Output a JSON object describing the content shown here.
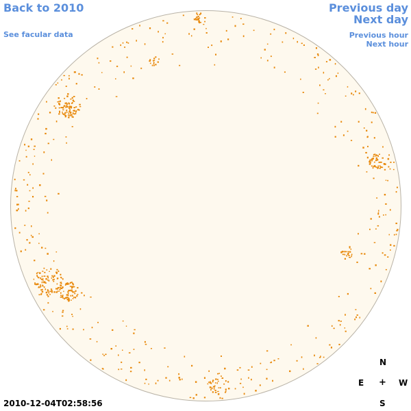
{
  "nav": {
    "back": "Back to 2010",
    "facular": "See facular data",
    "prev_day": "Previous day",
    "next_day": "Next day",
    "prev_hour": "Previous hour",
    "next_hour": "Next hour"
  },
  "compass": {
    "n": "N",
    "e": "E",
    "center": "+",
    "w": "W",
    "s": "S"
  },
  "timestamp": "2010-12-04T02:58:56",
  "colors": {
    "disk": "#fef9ee",
    "faculae": "#e8890c",
    "link": "#5b8fdc"
  }
}
